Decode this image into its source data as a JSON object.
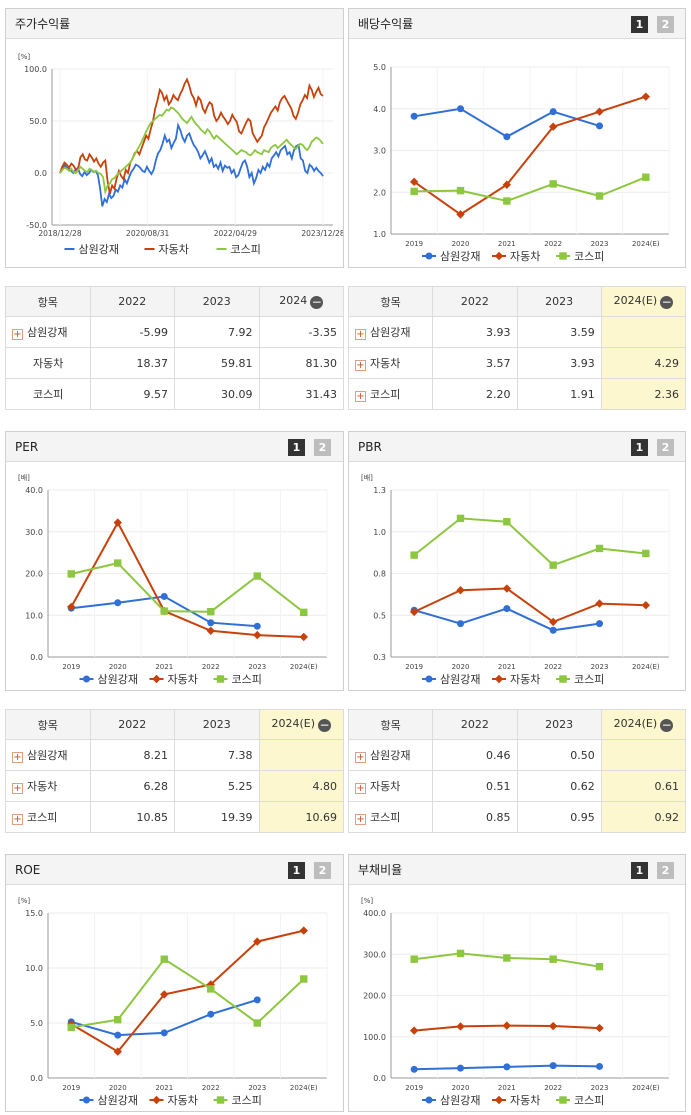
{
  "series_names": [
    "삼원강재",
    "자동차",
    "코스피"
  ],
  "colors": {
    "s1": "#2f6fd6",
    "s2": "#c8410a",
    "s3": "#8dc63f"
  },
  "charts": {
    "stock": {
      "title": "주가수익률",
      "chart_data": {
        "type": "line",
        "unit": "[%]",
        "ylim": [
          -50,
          100
        ],
        "yticks": [
          "100.0",
          "50.0",
          "0.0",
          "-50.0"
        ],
        "xticks": [
          "2018/12/28",
          "2020/08/31",
          "2022/04/29",
          "2023/12/28"
        ],
        "series": [
          {
            "name": "삼원강재",
            "values": [
              0,
              3,
              8,
              5,
              4,
              2,
              0,
              3,
              5,
              -1,
              -3,
              1,
              -2,
              0,
              3,
              1,
              2,
              -2,
              -15,
              -32,
              -25,
              -28,
              -20,
              -24,
              -22,
              -16,
              -18,
              -12,
              -14,
              -6,
              -10,
              -4,
              1,
              4,
              8,
              7,
              5,
              2,
              1,
              6,
              2,
              -1,
              3,
              12,
              19,
              22,
              28,
              36,
              30,
              32,
              24,
              29,
              33,
              46,
              41,
              34,
              30,
              36,
              38,
              32,
              27,
              24,
              20,
              14,
              17,
              21,
              16,
              10,
              14,
              6,
              8,
              4,
              10,
              2,
              7,
              5,
              6,
              0,
              3,
              -4,
              -2,
              4,
              10,
              12,
              6,
              -4,
              0,
              -10,
              -5,
              3,
              0,
              6,
              3,
              9,
              6,
              14,
              17,
              20,
              16,
              22,
              24,
              26,
              18,
              20,
              14,
              22,
              26,
              27,
              14,
              12,
              2,
              0,
              8,
              6,
              2,
              5,
              2,
              0,
              -3
            ]
          },
          {
            "name": "자동차",
            "values": [
              0,
              6,
              10,
              8,
              5,
              9,
              7,
              3,
              4,
              15,
              18,
              13,
              12,
              18,
              15,
              11,
              14,
              9,
              6,
              10,
              12,
              -8,
              -20,
              -12,
              -15,
              -5,
              2,
              -3,
              -6,
              3,
              0,
              10,
              14,
              19,
              21,
              18,
              24,
              30,
              36,
              33,
              42,
              50,
              62,
              70,
              80,
              77,
              70,
              74,
              66,
              69,
              75,
              72,
              70,
              76,
              80,
              86,
              90,
              84,
              76,
              72,
              65,
              73,
              70,
              62,
              58,
              64,
              68,
              66,
              55,
              50,
              53,
              58,
              54,
              51,
              47,
              50,
              56,
              52,
              49,
              40,
              38,
              43,
              48,
              52,
              50,
              38,
              34,
              30,
              33,
              36,
              44,
              48,
              53,
              58,
              61,
              64,
              60,
              68,
              72,
              74,
              70,
              66,
              62,
              55,
              52,
              58,
              66,
              70,
              75,
              72,
              84,
              80,
              73,
              78,
              82,
              76,
              74
            ]
          },
          {
            "name": "코스피",
            "values": [
              0,
              3,
              5,
              4,
              2,
              4,
              1,
              0,
              3,
              6,
              4,
              2,
              1,
              4,
              3,
              1,
              2,
              0,
              -1,
              -4,
              -18,
              -12,
              -10,
              -6,
              -5,
              -2,
              0,
              2,
              4,
              6,
              8,
              10,
              14,
              18,
              22,
              26,
              30,
              35,
              40,
              44,
              48,
              50,
              52,
              54,
              56,
              55,
              58,
              61,
              60,
              63,
              62,
              60,
              58,
              55,
              52,
              50,
              48,
              51,
              54,
              50,
              47,
              45,
              42,
              40,
              38,
              42,
              40,
              36,
              33,
              36,
              34,
              32,
              30,
              28,
              26,
              24,
              22,
              20,
              18,
              20,
              22,
              21,
              20,
              18,
              17,
              19,
              22,
              20,
              19,
              18,
              22,
              21,
              20,
              24,
              26,
              27,
              24,
              26,
              28,
              30,
              32,
              29,
              27,
              25,
              23,
              26,
              28,
              27,
              24,
              22,
              25,
              30,
              32,
              34,
              33,
              31,
              28
            ]
          }
        ]
      }
    },
    "dividend": {
      "title": "배당수익률",
      "chart_data": {
        "type": "line",
        "ylim": [
          1.0,
          5.0
        ],
        "yticks": [
          "5.0",
          "4.0",
          "3.0",
          "2.0",
          "1.0"
        ],
        "categories": [
          "2019",
          "2020",
          "2021",
          "2022",
          "2023",
          "2024(E)"
        ],
        "series": [
          {
            "name": "삼원강재",
            "values": [
              3.82,
              4.0,
              3.33,
              3.93,
              3.59,
              null
            ]
          },
          {
            "name": "자동차",
            "values": [
              2.25,
              1.47,
              2.18,
              3.57,
              3.93,
              4.29
            ]
          },
          {
            "name": "코스피",
            "values": [
              2.02,
              2.04,
              1.79,
              2.2,
              1.91,
              2.36
            ]
          }
        ]
      }
    },
    "per": {
      "title": "PER",
      "chart_data": {
        "type": "line",
        "unit": "[배]",
        "ylim": [
          0,
          40
        ],
        "yticks": [
          "40.0",
          "30.0",
          "20.0",
          "10.0",
          "0.0"
        ],
        "categories": [
          "2019",
          "2020",
          "2021",
          "2022",
          "2023",
          "2024(E)"
        ],
        "series": [
          {
            "name": "삼원강재",
            "values": [
              11.7,
              13.0,
              14.5,
              8.21,
              7.38,
              null
            ]
          },
          {
            "name": "자동차",
            "values": [
              12.0,
              32.2,
              11.0,
              6.28,
              5.25,
              4.8
            ]
          },
          {
            "name": "코스피",
            "values": [
              19.9,
              22.5,
              11.0,
              10.85,
              19.39,
              10.69
            ]
          }
        ]
      }
    },
    "pbr": {
      "title": "PBR",
      "chart_data": {
        "type": "line",
        "unit": "[배]",
        "ylim": [
          0.3,
          1.3
        ],
        "yticks": [
          "1.3",
          "1.0",
          "0.8",
          "0.5",
          "0.3"
        ],
        "categories": [
          "2019",
          "2020",
          "2021",
          "2022",
          "2023",
          "2024(E)"
        ],
        "series": [
          {
            "name": "삼원강재",
            "values": [
              0.58,
              0.5,
              0.59,
              0.46,
              0.5,
              null
            ]
          },
          {
            "name": "자동차",
            "values": [
              0.57,
              0.7,
              0.71,
              0.51,
              0.62,
              0.61
            ]
          },
          {
            "name": "코스피",
            "values": [
              0.91,
              1.13,
              1.11,
              0.85,
              0.95,
              0.92
            ]
          }
        ]
      }
    },
    "roe": {
      "title": "ROE",
      "chart_data": {
        "type": "line",
        "unit": "[%]",
        "ylim": [
          0,
          15
        ],
        "yticks": [
          "15.0",
          "10.0",
          "5.0",
          "0.0"
        ],
        "categories": [
          "2019",
          "2020",
          "2021",
          "2022",
          "2023",
          "2024(E)"
        ],
        "series": [
          {
            "name": "삼원강재",
            "values": [
              5.1,
              3.9,
              4.1,
              5.8,
              7.1,
              null
            ]
          },
          {
            "name": "자동차",
            "values": [
              4.9,
              2.4,
              7.6,
              8.5,
              12.4,
              13.4
            ]
          },
          {
            "name": "코스피",
            "values": [
              4.6,
              5.3,
              10.8,
              8.1,
              5.0,
              9.0
            ]
          }
        ]
      }
    },
    "debt": {
      "title": "부채비율",
      "chart_data": {
        "type": "line",
        "unit": "[%]",
        "ylim": [
          0,
          400
        ],
        "yticks": [
          "400.0",
          "300.0",
          "200.0",
          "100.0",
          "0.0"
        ],
        "categories": [
          "2019",
          "2020",
          "2021",
          "2022",
          "2023",
          "2024(E)"
        ],
        "series": [
          {
            "name": "삼원강재",
            "values": [
              21,
              24,
              27,
              30,
              28,
              null
            ]
          },
          {
            "name": "자동차",
            "values": [
              115,
              125,
              127,
              126,
              121,
              null
            ]
          },
          {
            "name": "코스피",
            "values": [
              288,
              302,
              291,
              288,
              270,
              null
            ]
          }
        ]
      }
    }
  },
  "tables": {
    "stock": {
      "headers": [
        "항목",
        "2022",
        "2023",
        "2024"
      ],
      "rows": [
        {
          "name": "삼원강재",
          "values": [
            "-5.99",
            "7.92",
            "-3.35"
          ]
        },
        {
          "name": "자동차",
          "values": [
            "18.37",
            "59.81",
            "81.30"
          ]
        },
        {
          "name": "코스피",
          "values": [
            "9.57",
            "30.09",
            "31.43"
          ]
        }
      ]
    },
    "dividend": {
      "headers": [
        "항목",
        "2022",
        "2023",
        "2024(E)"
      ],
      "rows": [
        {
          "name": "삼원강재",
          "values": [
            "3.93",
            "3.59",
            ""
          ]
        },
        {
          "name": "자동차",
          "values": [
            "3.57",
            "3.93",
            "4.29"
          ]
        },
        {
          "name": "코스피",
          "values": [
            "2.20",
            "1.91",
            "2.36"
          ]
        }
      ]
    },
    "per": {
      "headers": [
        "항목",
        "2022",
        "2023",
        "2024(E)"
      ],
      "rows": [
        {
          "name": "삼원강재",
          "values": [
            "8.21",
            "7.38",
            ""
          ]
        },
        {
          "name": "자동차",
          "values": [
            "6.28",
            "5.25",
            "4.80"
          ]
        },
        {
          "name": "코스피",
          "values": [
            "10.85",
            "19.39",
            "10.69"
          ]
        }
      ]
    },
    "pbr": {
      "headers": [
        "항목",
        "2022",
        "2023",
        "2024(E)"
      ],
      "rows": [
        {
          "name": "삼원강재",
          "values": [
            "0.46",
            "0.50",
            ""
          ]
        },
        {
          "name": "자동차",
          "values": [
            "0.51",
            "0.62",
            "0.61"
          ]
        },
        {
          "name": "코스피",
          "values": [
            "0.85",
            "0.95",
            "0.92"
          ]
        }
      ]
    }
  },
  "page_buttons": [
    "1",
    "2"
  ],
  "minus_symbol": "−",
  "plus_symbol": "+"
}
